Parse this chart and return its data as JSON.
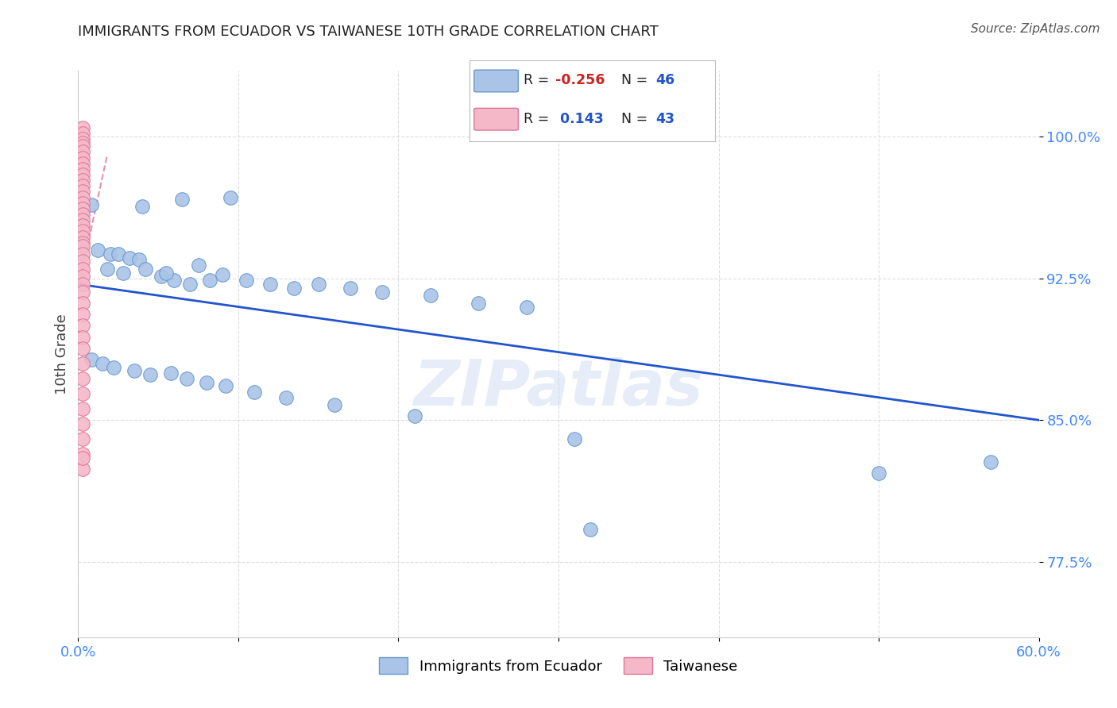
{
  "title": "IMMIGRANTS FROM ECUADOR VS TAIWANESE 10TH GRADE CORRELATION CHART",
  "source": "Source: ZipAtlas.com",
  "ylabel": "10th Grade",
  "ytick_labels": [
    "100.0%",
    "92.5%",
    "85.0%",
    "77.5%"
  ],
  "ytick_values": [
    1.0,
    0.925,
    0.85,
    0.775
  ],
  "xlim": [
    0.0,
    0.6
  ],
  "ylim": [
    0.735,
    1.035
  ],
  "blue_scatter_x": [
    0.008,
    0.04,
    0.065,
    0.095,
    0.012,
    0.02,
    0.025,
    0.032,
    0.038,
    0.018,
    0.028,
    0.042,
    0.052,
    0.06,
    0.07,
    0.082,
    0.055,
    0.075,
    0.09,
    0.105,
    0.12,
    0.135,
    0.15,
    0.17,
    0.19,
    0.22,
    0.25,
    0.28,
    0.008,
    0.015,
    0.022,
    0.035,
    0.045,
    0.058,
    0.068,
    0.08,
    0.092,
    0.11,
    0.13,
    0.16,
    0.21,
    0.31,
    0.5,
    0.57,
    0.32
  ],
  "blue_scatter_y": [
    0.964,
    0.963,
    0.967,
    0.968,
    0.94,
    0.938,
    0.938,
    0.936,
    0.935,
    0.93,
    0.928,
    0.93,
    0.926,
    0.924,
    0.922,
    0.924,
    0.928,
    0.932,
    0.927,
    0.924,
    0.922,
    0.92,
    0.922,
    0.92,
    0.918,
    0.916,
    0.912,
    0.91,
    0.882,
    0.88,
    0.878,
    0.876,
    0.874,
    0.875,
    0.872,
    0.87,
    0.868,
    0.865,
    0.862,
    0.858,
    0.852,
    0.84,
    0.822,
    0.828,
    0.792
  ],
  "pink_scatter_x": [
    0.003,
    0.003,
    0.003,
    0.003,
    0.003,
    0.003,
    0.003,
    0.003,
    0.003,
    0.003,
    0.003,
    0.003,
    0.003,
    0.003,
    0.003,
    0.003,
    0.003,
    0.003,
    0.003,
    0.003,
    0.003,
    0.003,
    0.003,
    0.003,
    0.003,
    0.003,
    0.003,
    0.003,
    0.003,
    0.003,
    0.003,
    0.003,
    0.003,
    0.003,
    0.003,
    0.003,
    0.003,
    0.003,
    0.003,
    0.003,
    0.003,
    0.003,
    0.003
  ],
  "pink_scatter_y": [
    1.005,
    1.002,
    0.999,
    0.997,
    0.995,
    0.992,
    0.989,
    0.986,
    0.983,
    0.98,
    0.977,
    0.974,
    0.971,
    0.968,
    0.965,
    0.962,
    0.959,
    0.956,
    0.953,
    0.95,
    0.947,
    0.944,
    0.942,
    0.938,
    0.934,
    0.93,
    0.926,
    0.922,
    0.918,
    0.912,
    0.906,
    0.9,
    0.894,
    0.888,
    0.88,
    0.872,
    0.864,
    0.856,
    0.848,
    0.84,
    0.832,
    0.824,
    0.83
  ],
  "blue_line_x": [
    0.0,
    0.6
  ],
  "blue_line_y": [
    0.922,
    0.85
  ],
  "pink_line_x": [
    -0.005,
    0.018
  ],
  "pink_line_y": [
    0.9,
    0.99
  ],
  "blue_color": "#aac4e8",
  "blue_edge_color": "#6699cc",
  "pink_color": "#f5b8c8",
  "pink_edge_color": "#dd7799",
  "blue_line_color": "#2255cc",
  "pink_line_color": "#dd7799",
  "background_color": "#ffffff",
  "grid_color": "#dddddd",
  "title_color": "#222222",
  "axis_color": "#4488ff",
  "watermark": "ZIPatlas",
  "legend_label_blue": "Immigrants from Ecuador",
  "legend_label_pink": "Taiwanese"
}
